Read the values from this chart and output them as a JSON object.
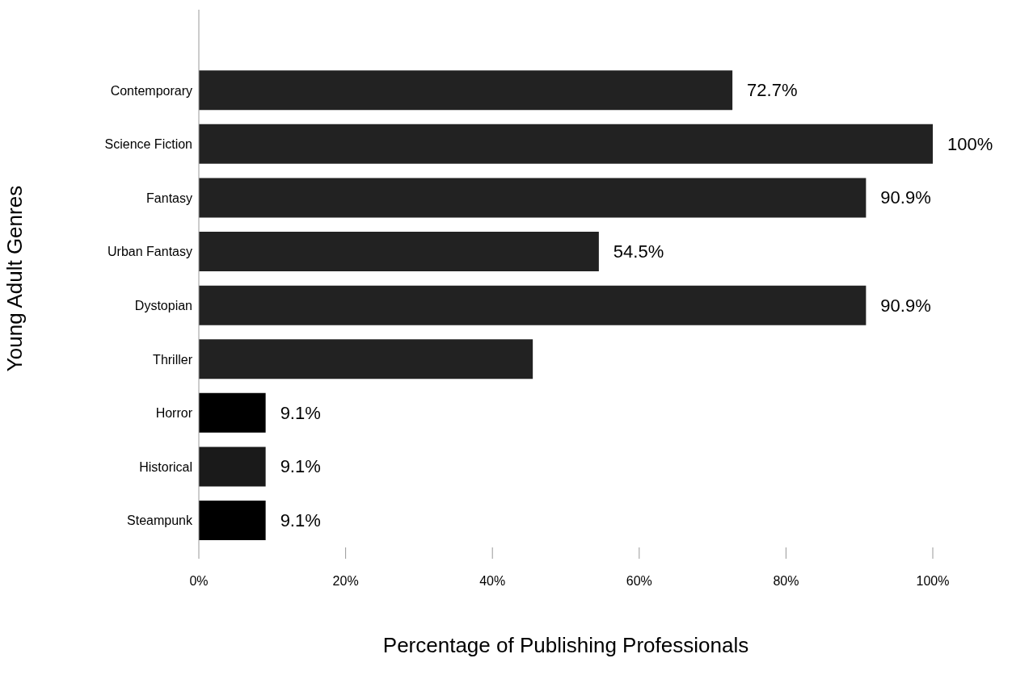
{
  "chart_data": {
    "type": "bar",
    "orientation": "horizontal",
    "xlabel": "Percentage of Publishing Professionals",
    "ylabel": "Young Adult Genres",
    "categories": [
      null,
      "Contemporary",
      "Science Fiction",
      "Fantasy",
      "Urban Fantasy",
      "Dystopian",
      "Thriller",
      "Horror",
      "Historical",
      "Steampunk"
    ],
    "values": [
      null,
      72.7,
      100,
      90.9,
      54.5,
      90.9,
      45.5,
      9.1,
      9.1,
      9.1
    ],
    "colors": [
      "#222222",
      "#222222",
      "#222222",
      "#222222",
      "#222222",
      "#222222",
      "#222222",
      "#000000",
      "#1a1a1a",
      "#000000"
    ],
    "value_labels": [
      null,
      "72.7%",
      "100%",
      "90.9%",
      "54.5%",
      "90.9%",
      null,
      "9.1%",
      "9.1%",
      "9.1%"
    ],
    "xlim": [
      0,
      100
    ],
    "xticks": [
      {
        "value": 0,
        "label": "0%"
      },
      {
        "value": 20,
        "label": "20%"
      },
      {
        "value": 40,
        "label": "40%"
      },
      {
        "value": 60,
        "label": "60%"
      },
      {
        "value": 80,
        "label": "80%"
      },
      {
        "value": 100,
        "label": "100%"
      }
    ],
    "grid": false
  }
}
